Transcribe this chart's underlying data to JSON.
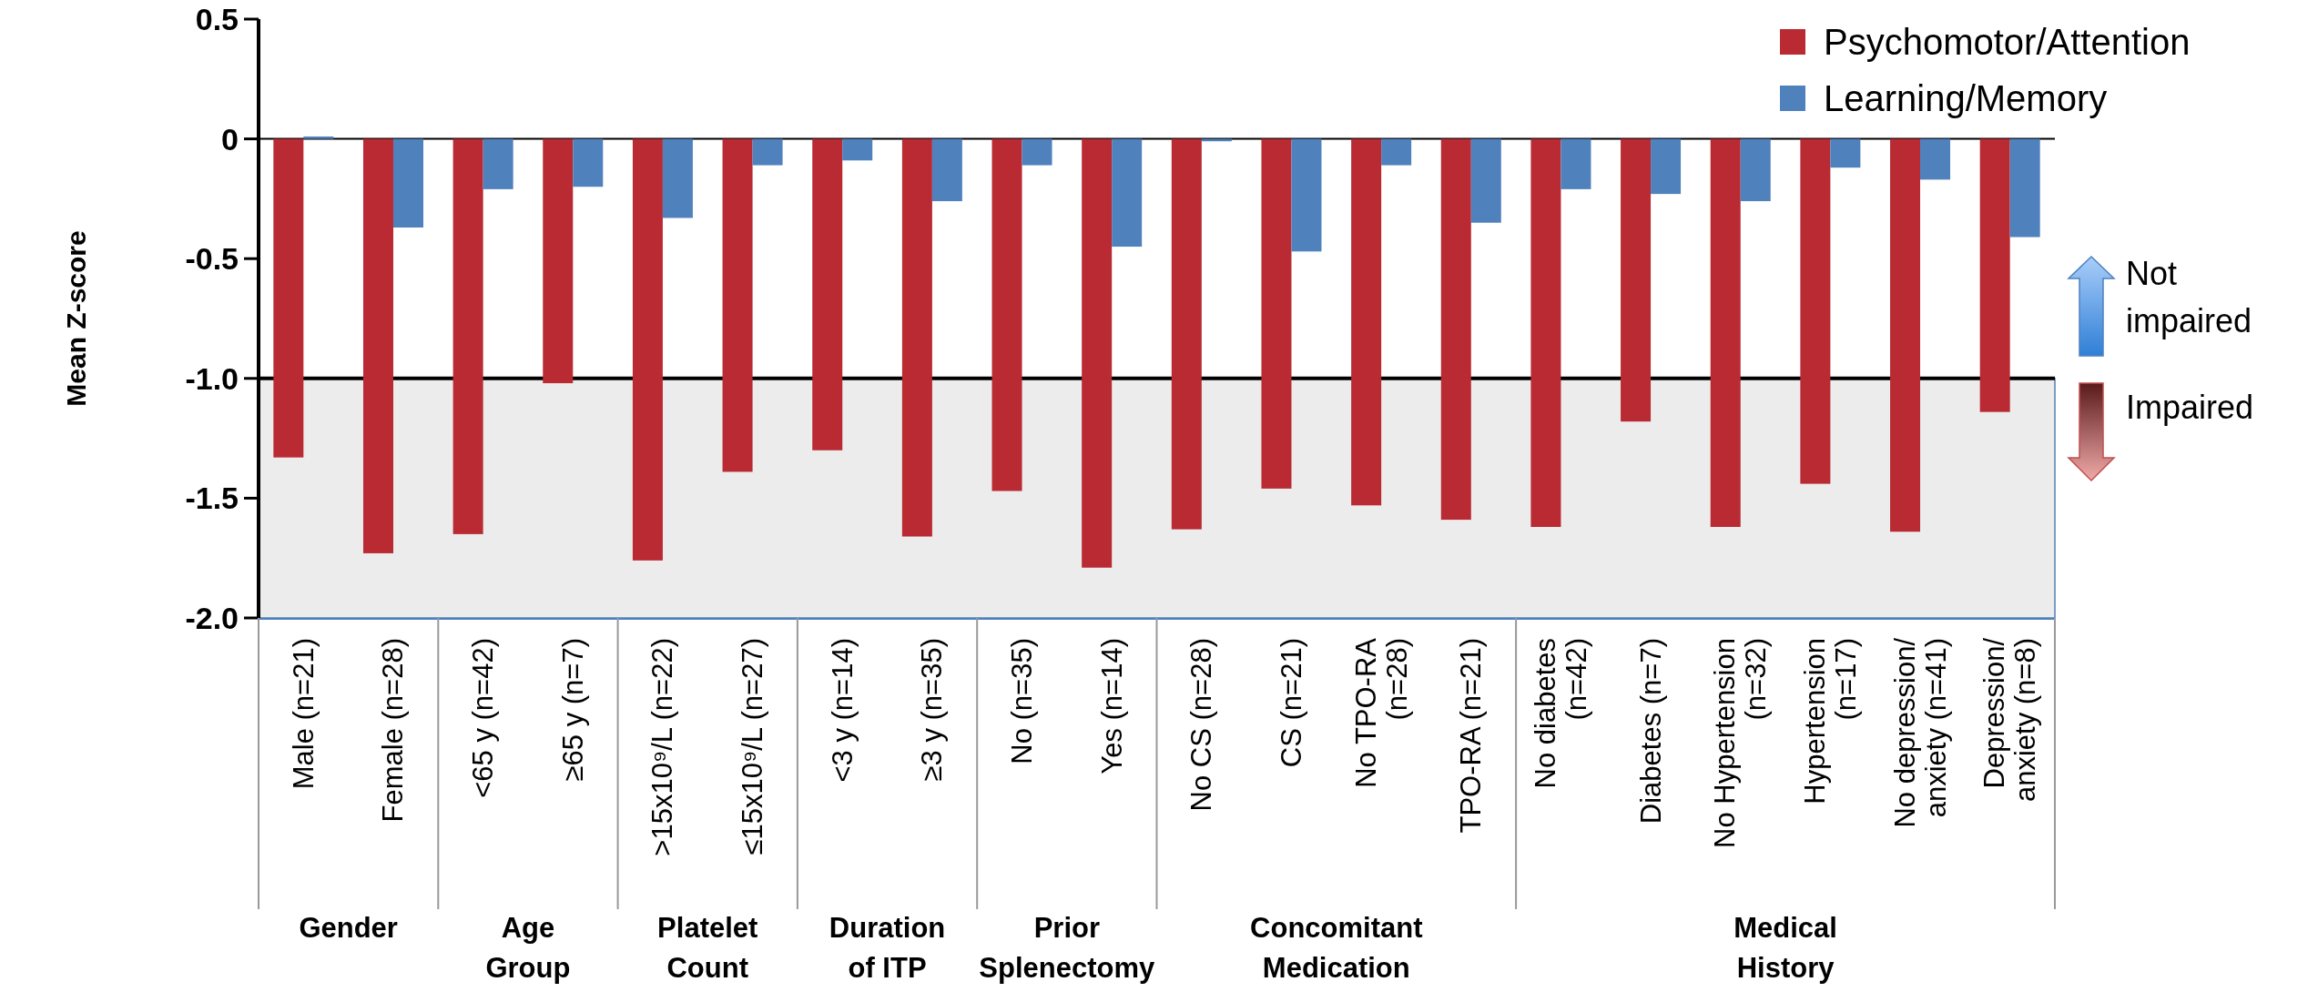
{
  "chart_data": {
    "type": "bar",
    "ylabel": "Mean Z-score",
    "categories": [
      "Male (n=21)",
      "Female (n=28)",
      "<65 y (n=42)",
      "≥65 y (n=7)",
      ">15x10⁹/L (n=22)",
      "≤15x10⁹/L (n=27)",
      "<3 y (n=14)",
      "≥3 y (n=35)",
      "No (n=35)",
      "Yes (n=14)",
      "No CS (n=28)",
      "CS (n=21)",
      "No TPO-RA\n(n=28)",
      "TPO-RA (n=21)",
      "No diabetes\n(n=42)",
      "Diabetes (n=7)",
      "No Hypertension\n(n=32)",
      "Hypertension\n(n=17)",
      "No depression/\nanxiety (n=41)",
      "Depression/\nanxiety (n=8)"
    ],
    "series": [
      {
        "name": "Psychomotor/Attention",
        "color": "#b92a33",
        "values": [
          -1.33,
          -1.73,
          -1.65,
          -1.02,
          -1.76,
          -1.39,
          -1.3,
          -1.66,
          -1.47,
          -1.79,
          -1.63,
          -1.46,
          -1.53,
          -1.59,
          -1.62,
          -1.18,
          -1.62,
          -1.44,
          -1.64,
          -1.14
        ]
      },
      {
        "name": "Learning/Memory",
        "color": "#4f81bd",
        "values": [
          0.01,
          -0.37,
          -0.21,
          -0.2,
          -0.33,
          -0.11,
          -0.09,
          -0.26,
          -0.11,
          -0.45,
          -0.01,
          -0.47,
          -0.11,
          -0.35,
          -0.21,
          -0.23,
          -0.26,
          -0.12,
          -0.17,
          -0.41
        ]
      }
    ],
    "ylim": [
      -2,
      0.5
    ],
    "yticks": [
      0.5,
      0,
      -0.5,
      {
        "value": -1,
        "label": "-1.0"
      },
      -1.5,
      {
        "value": -2,
        "label": "-2.0"
      }
    ],
    "ref_lines": [
      {
        "axis": "y",
        "value": -1,
        "color": "#000000"
      }
    ],
    "bands": [
      {
        "axis": "y",
        "from": -2,
        "to": -1,
        "color": "#ececec"
      }
    ],
    "annotations": [
      "Gender",
      "Age\nGroup",
      "Platelet\nCount",
      "Duration\nof ITP",
      "Prior\nSplenectomy",
      "Concomitant\nMedication",
      "Medical\nHistory",
      "Not\nimpaired",
      "Impaired"
    ],
    "legend": "top right",
    "grid": false
  }
}
